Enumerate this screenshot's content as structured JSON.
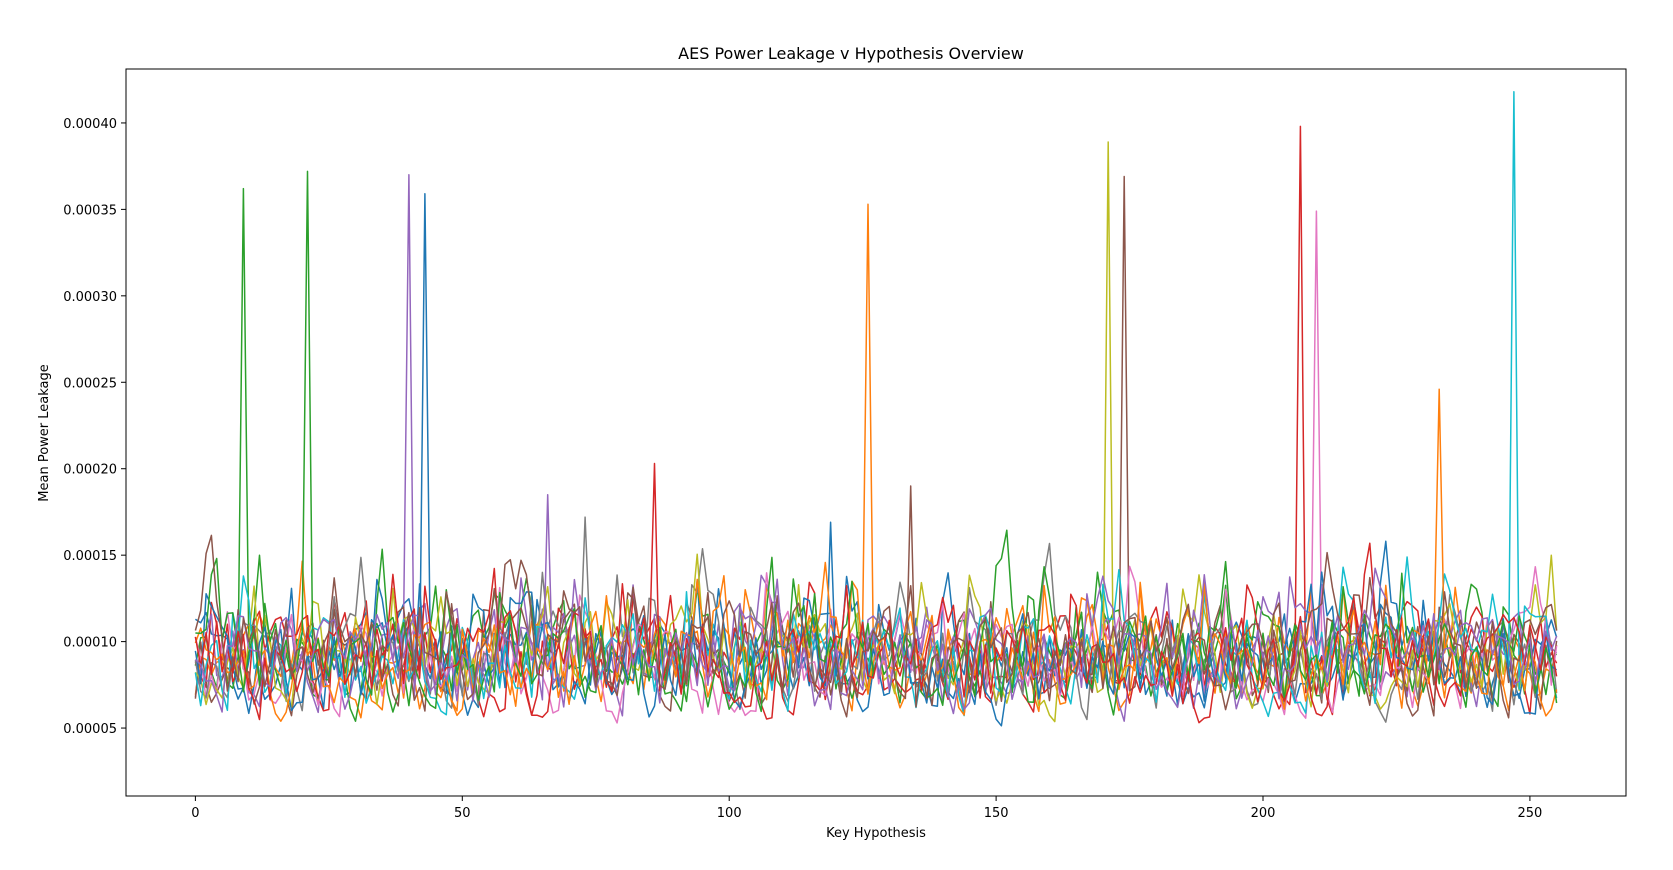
{
  "chart_data": {
    "type": "line",
    "title": "AES Power Leakage v Hypothesis Overview",
    "xlabel": "Key Hypothesis",
    "ylabel": "Mean Power Leakage",
    "xlim": [
      -13,
      268
    ],
    "ylim": [
      1.07e-05,
      0.0004312
    ],
    "x_range": [
      0,
      255
    ],
    "xticks": [
      0,
      50,
      100,
      150,
      200,
      250
    ],
    "xtick_labels": [
      "0",
      "50",
      "100",
      "150",
      "200",
      "250"
    ],
    "yticks": [
      5e-05,
      0.0001,
      0.00015,
      0.0002,
      0.00025,
      0.0003,
      0.00035,
      0.0004
    ],
    "ytick_labels": [
      "0.00005",
      "0.00010",
      "0.00015",
      "0.00020",
      "0.00025",
      "0.00030",
      "0.00035",
      "0.00040"
    ],
    "grid": false,
    "legend": "none",
    "series_count": 16,
    "note": "16 overlaid traces (one per key byte) of 256 points each; values mostly in 0.00003–0.00020 with one dominant peak per trace",
    "series": [
      {
        "color": "#1f77b4",
        "peak_x": 43,
        "peak_y": 0.000359
      },
      {
        "color": "#ff7f0e",
        "peak_x": 126,
        "peak_y": 0.000353
      },
      {
        "color": "#2ca02c",
        "peak_x": 9,
        "peak_y": 0.000362
      },
      {
        "color": "#d62728",
        "peak_x": 207,
        "peak_y": 0.000398
      },
      {
        "color": "#9467bd",
        "peak_x": 40,
        "peak_y": 0.00037
      },
      {
        "color": "#8c564b",
        "peak_x": 174,
        "peak_y": 0.000369
      },
      {
        "color": "#e377c2",
        "peak_x": 210,
        "peak_y": 0.000349
      },
      {
        "color": "#7f7f7f",
        "peak_x": 73,
        "peak_y": 0.000172
      },
      {
        "color": "#bcbd22",
        "peak_x": 171,
        "peak_y": 0.000389
      },
      {
        "color": "#17becf",
        "peak_x": 247,
        "peak_y": 0.000418
      },
      {
        "color": "#1f77b4",
        "peak_x": 119,
        "peak_y": 0.000169
      },
      {
        "color": "#ff7f0e",
        "peak_x": 233,
        "peak_y": 0.000246
      },
      {
        "color": "#2ca02c",
        "peak_x": 21,
        "peak_y": 0.000372
      },
      {
        "color": "#d62728",
        "peak_x": 86,
        "peak_y": 0.000203
      },
      {
        "color": "#9467bd",
        "peak_x": 66,
        "peak_y": 0.000185
      },
      {
        "color": "#8c564b",
        "peak_x": 134,
        "peak_y": 0.00019
      }
    ]
  }
}
